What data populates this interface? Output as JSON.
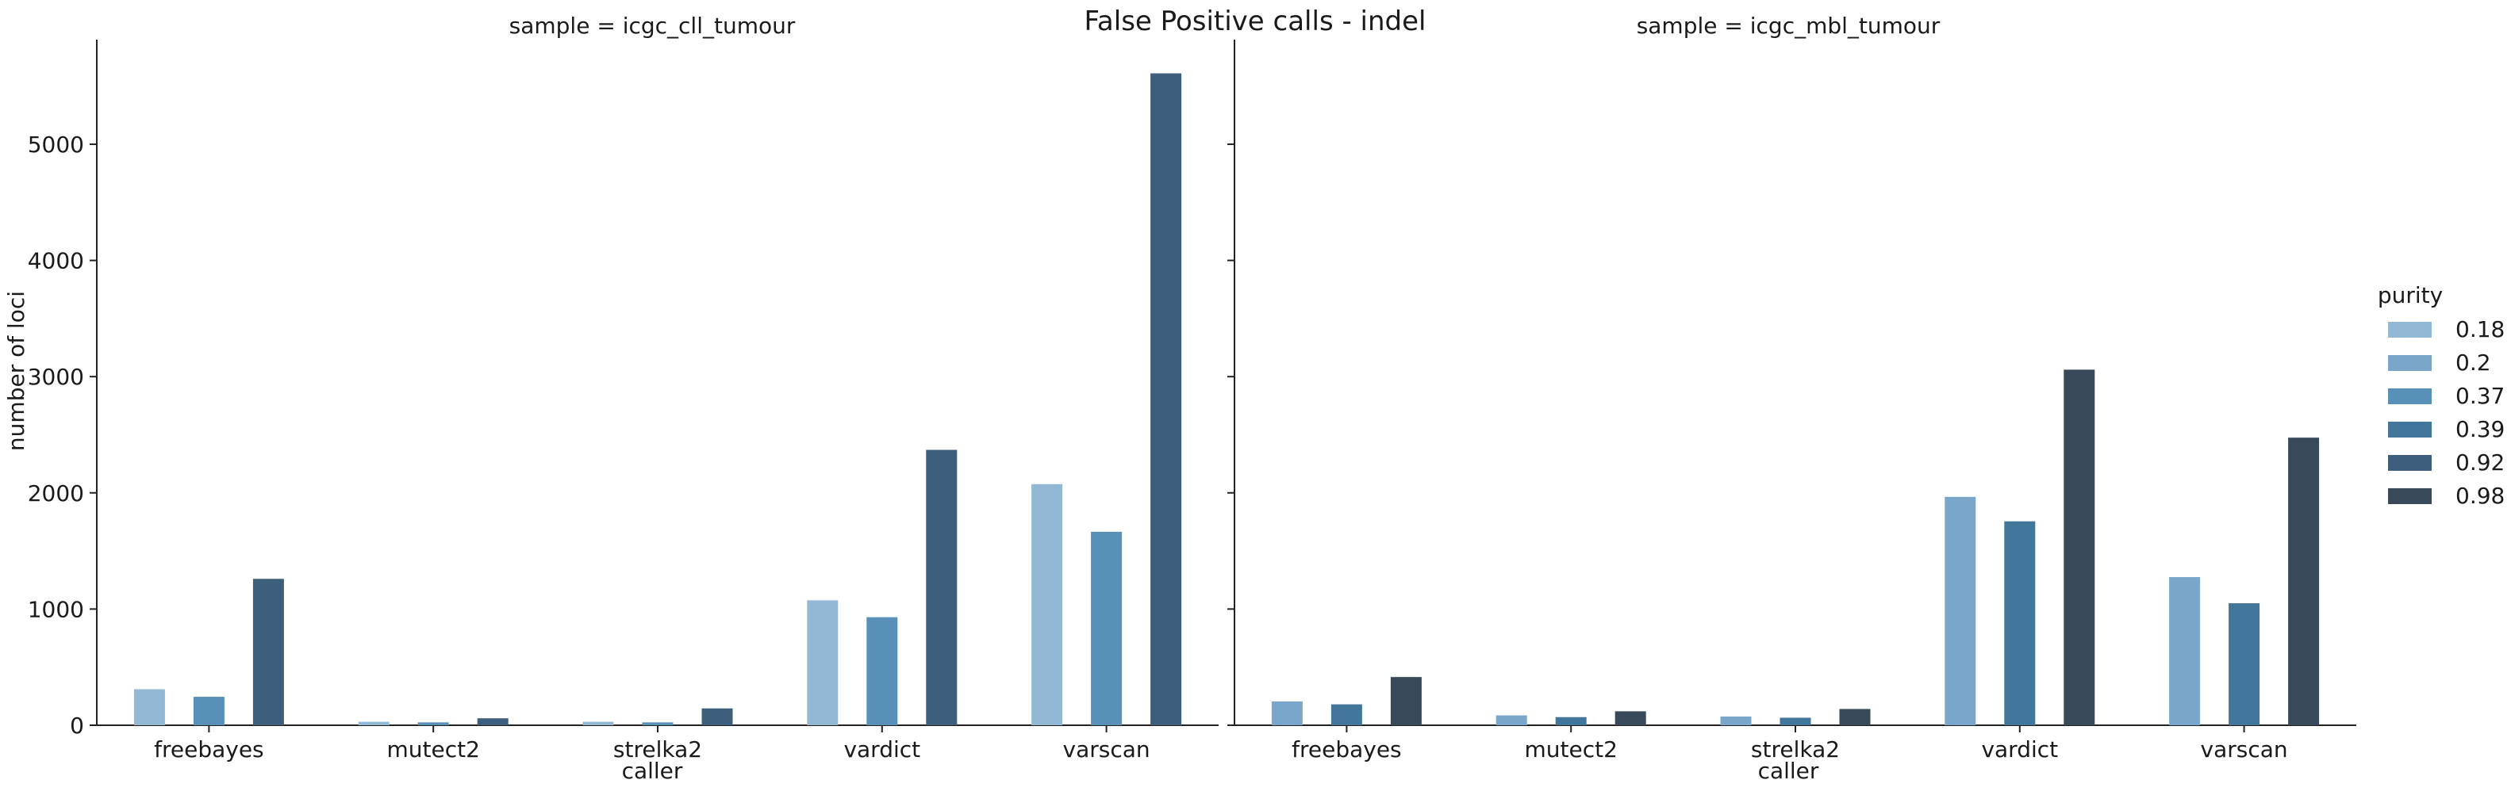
{
  "chart_data": {
    "type": "bar",
    "title": "False Positive calls - indel",
    "xlabel": "caller",
    "ylabel": "number of loci",
    "ylim": [
      0,
      5900
    ],
    "yticks": [
      0,
      1000,
      2000,
      3000,
      4000,
      5000
    ],
    "grid": false,
    "legend": {
      "title": "purity",
      "placement": "right",
      "entries": [
        {
          "label": "0.18",
          "color": "#92b8d4"
        },
        {
          "label": "0.2",
          "color": "#79a6c9"
        },
        {
          "label": "0.37",
          "color": "#5890b8"
        },
        {
          "label": "0.39",
          "color": "#43769b"
        },
        {
          "label": "0.92",
          "color": "#3d5f7c"
        },
        {
          "label": "0.98",
          "color": "#38495a"
        }
      ]
    },
    "panels": [
      {
        "title": "sample = icgc_cll_tumour",
        "categories": [
          "freebayes",
          "mutect2",
          "strelka2",
          "vardict",
          "varscan"
        ],
        "series": [
          {
            "name": "0.18",
            "color": "#92b8d4",
            "values": [
              310,
              30,
              30,
              1075,
              2075
            ]
          },
          {
            "name": "0.37",
            "color": "#5890b8",
            "values": [
              245,
              25,
              25,
              930,
              1665
            ]
          },
          {
            "name": "0.92",
            "color": "#3d5f7c",
            "values": [
              1260,
              60,
              145,
              2370,
              5610
            ]
          }
        ]
      },
      {
        "title": "sample = icgc_mbl_tumour",
        "categories": [
          "freebayes",
          "mutect2",
          "strelka2",
          "vardict",
          "varscan"
        ],
        "series": [
          {
            "name": "0.2",
            "color": "#79a6c9",
            "values": [
              205,
              85,
              75,
              1965,
              1275
            ]
          },
          {
            "name": "0.39",
            "color": "#43769b",
            "values": [
              180,
              70,
              65,
              1755,
              1050
            ]
          },
          {
            "name": "0.98",
            "color": "#38495a",
            "values": [
              415,
              120,
              140,
              3060,
              2475
            ]
          }
        ]
      }
    ]
  }
}
